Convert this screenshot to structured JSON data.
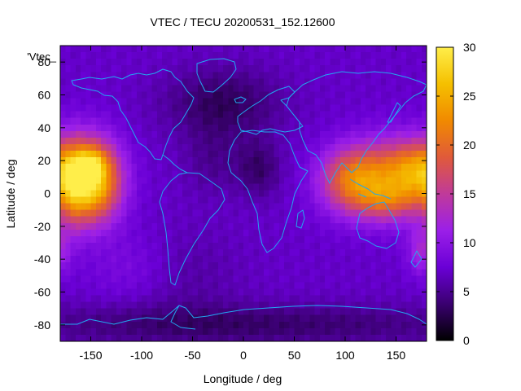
{
  "chart_data": {
    "type": "heatmap",
    "title": "VTEC / TECU 20200531_152.12600",
    "xlabel": "Longitude / deg",
    "ylabel": "Latitude / deg",
    "plot_key": "'Vtec_",
    "xlim": [
      -180,
      180
    ],
    "ylim": [
      -90,
      90
    ],
    "x_ticks": [
      -150,
      -100,
      -50,
      0,
      50,
      100,
      150
    ],
    "y_ticks": [
      -80,
      -60,
      -40,
      -20,
      0,
      20,
      40,
      60,
      80
    ],
    "colorbar": {
      "range": [
        0,
        30
      ],
      "ticks": [
        0,
        5,
        10,
        15,
        20,
        25,
        30
      ],
      "colors": [
        "#000000",
        "#3a0070",
        "#6a00d6",
        "#9b1fe8",
        "#c03a9a",
        "#e05a3a",
        "#f18a00",
        "#f5c000",
        "#ffee4a"
      ]
    },
    "background_value": 7,
    "coastline_color": "#22a7f0",
    "tec_features": [
      {
        "lon": -150,
        "lat": 8,
        "value": 22,
        "sigma_lon": 20,
        "sigma_lat": 17
      },
      {
        "lon": -150,
        "lat": 18,
        "value": 6,
        "sigma_lon": 10,
        "sigma_lat": 6
      },
      {
        "lon": -168,
        "lat": 5,
        "value": 5,
        "sigma_lon": 10,
        "sigma_lat": 20
      },
      {
        "lon": 150,
        "lat": 10,
        "value": 13,
        "sigma_lon": 28,
        "sigma_lat": 16
      },
      {
        "lon": 105,
        "lat": 8,
        "value": 12,
        "sigma_lon": 22,
        "sigma_lat": 14
      },
      {
        "lon": 170,
        "lat": 15,
        "value": 6,
        "sigma_lon": 15,
        "sigma_lat": 12
      },
      {
        "lon": 140,
        "lat": -5,
        "value": 5,
        "sigma_lon": 20,
        "sigma_lat": 8
      },
      {
        "lon": 175,
        "lat": -35,
        "value": 5,
        "sigma_lon": 10,
        "sigma_lat": 10
      },
      {
        "lon": -20,
        "lat": 55,
        "value": -4,
        "sigma_lon": 40,
        "sigma_lat": 15
      },
      {
        "lon": 15,
        "lat": 15,
        "value": -3.5,
        "sigma_lon": 15,
        "sigma_lat": 12
      },
      {
        "lon": -30,
        "lat": 20,
        "value": -2,
        "sigma_lon": 20,
        "sigma_lat": 15
      },
      {
        "lon": 0,
        "lat": -80,
        "value": -3.5,
        "sigma_lon": 180,
        "sigma_lat": 9
      },
      {
        "lon": -60,
        "lat": -50,
        "value": -1.5,
        "sigma_lon": 40,
        "sigma_lat": 20
      },
      {
        "lon": -110,
        "lat": -45,
        "value": 2,
        "sigma_lon": 30,
        "sigma_lat": 15
      }
    ]
  }
}
